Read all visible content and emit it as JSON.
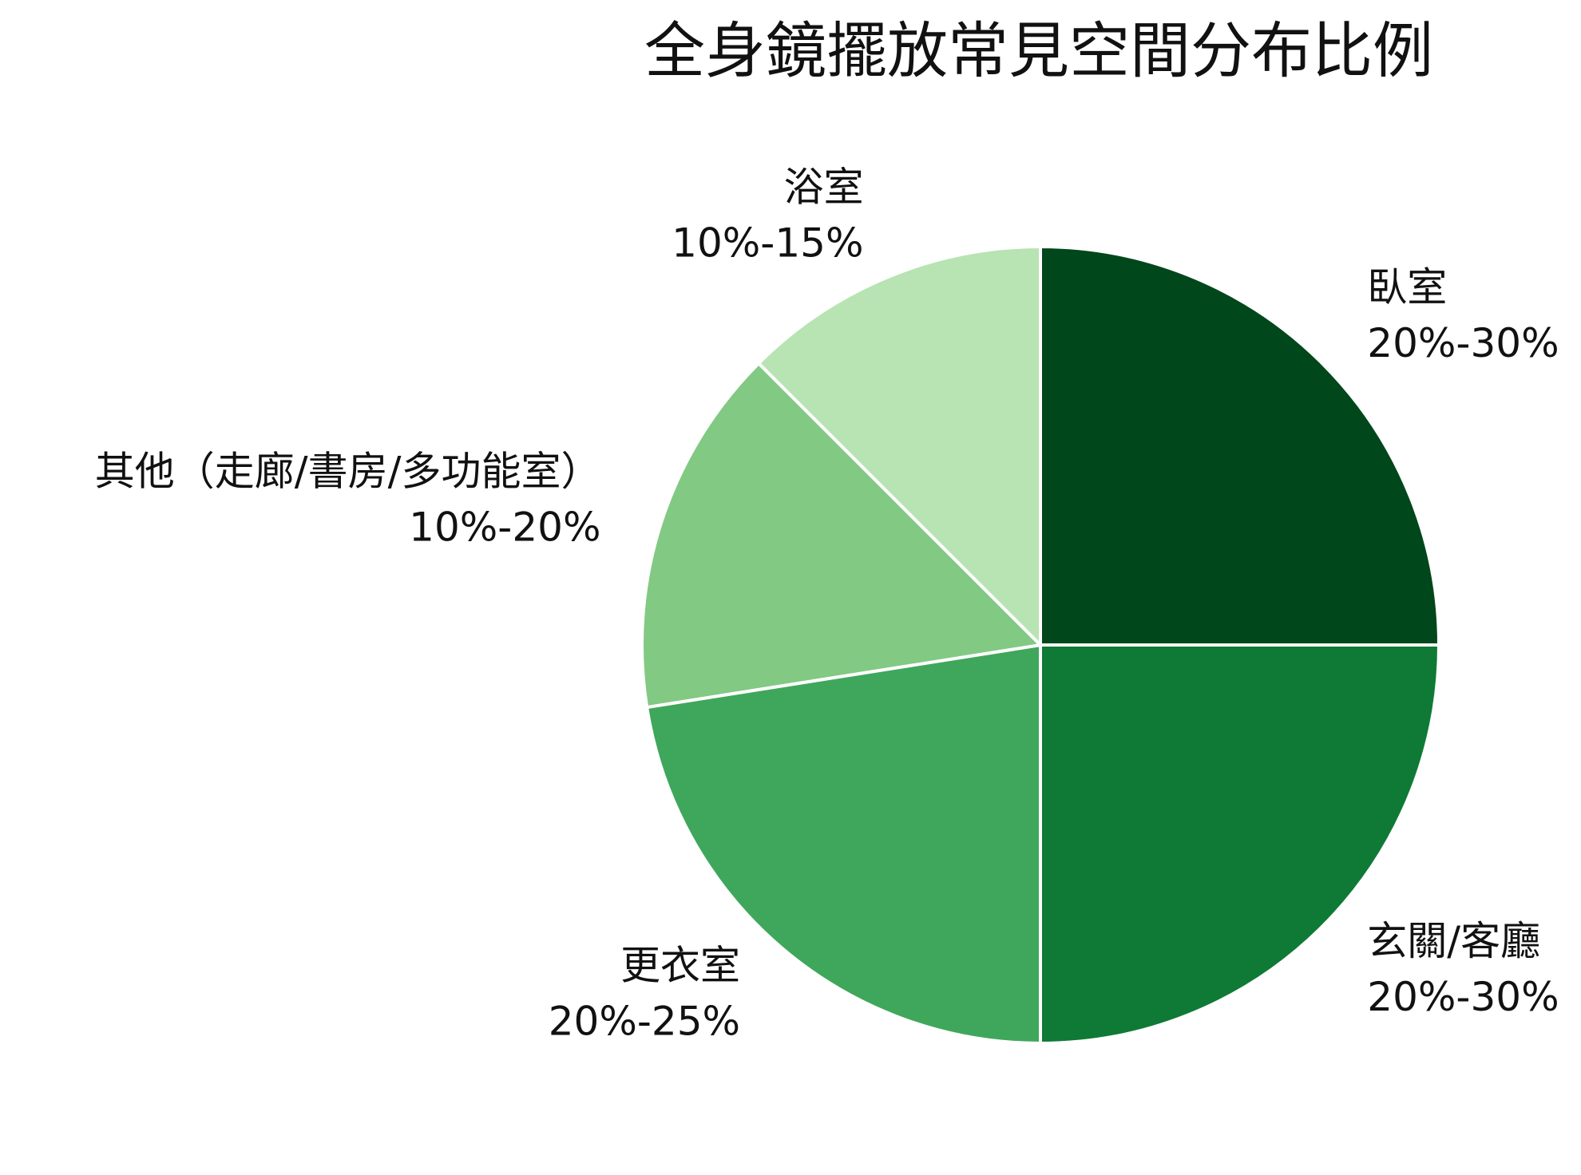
{
  "chart_data": {
    "type": "pie",
    "title": "全身鏡擺放常見空間分布比例",
    "categories": [
      "臥室",
      "玄關/客廳",
      "更衣室",
      "其他（走廊/書房/多功能室）",
      "浴室"
    ],
    "values": [
      25,
      25,
      22.5,
      15,
      12.5
    ],
    "value_labels": [
      "20%-30%",
      "20%-30%",
      "20%-25%",
      "10%-20%",
      "10%-15%"
    ],
    "colors": [
      "#00471b",
      "#0e7a36",
      "#3fa75b",
      "#82c983",
      "#b8e3b2"
    ]
  }
}
